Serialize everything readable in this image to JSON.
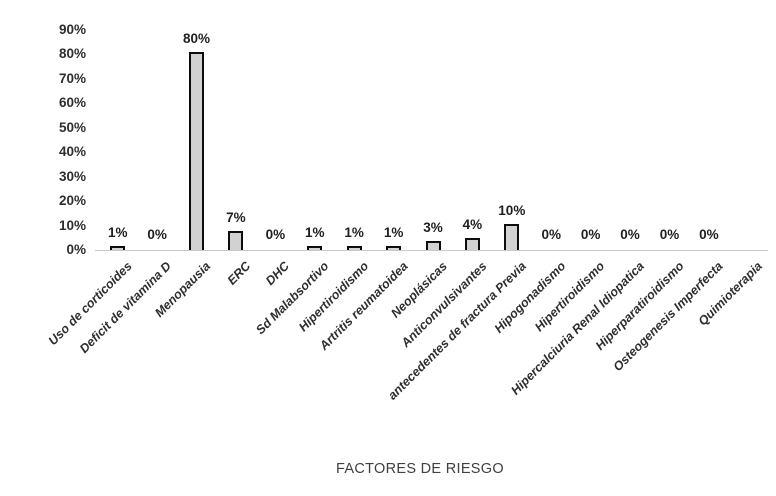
{
  "chart_data": {
    "type": "bar",
    "title": "",
    "xlabel": "FACTORES DE RIESGO",
    "ylabel": "",
    "categories": [
      "Uso  de corticoides",
      "Deficit de vitamina D",
      "Menopausia",
      "ERC",
      "DHC",
      "Sd Malabsortivo",
      "Hipertiroidismo",
      "Artritis reumatoidea",
      "Neoplásicas",
      "Anticonvulsivantes",
      "antecedentes de fractura Previa",
      "Hipogonadismo",
      "Hipertiroidismo",
      "Hipercalciuria Renal Idiopatica",
      "Hiperparatiroidismo",
      "Osteogenesis Imperfecta",
      "Quimioterapia"
    ],
    "values": [
      1,
      0,
      80,
      7,
      0,
      1,
      1,
      1,
      3,
      4,
      10,
      0,
      0,
      0,
      0,
      0,
      0
    ],
    "data_labels": [
      "1%",
      "0%",
      "80%",
      "7%",
      "0%",
      "1%",
      "1%",
      "1%",
      "3%",
      "4%",
      "10%",
      "0%",
      "0%",
      "0%",
      "0%",
      "0%",
      ""
    ],
    "ylim": [
      0,
      90
    ],
    "ytick_step": 10,
    "ytick_labels": [
      "0%",
      "10%",
      "20%",
      "30%",
      "40%",
      "50%",
      "60%",
      "70%",
      "80%",
      "90%"
    ],
    "grid": false,
    "legend_position": "none",
    "bar_fill": "#d2d2d2",
    "bar_border": "#0d0d0d",
    "axis_line_color": "#c9c9c9",
    "text_color": "#2e2e2e"
  }
}
